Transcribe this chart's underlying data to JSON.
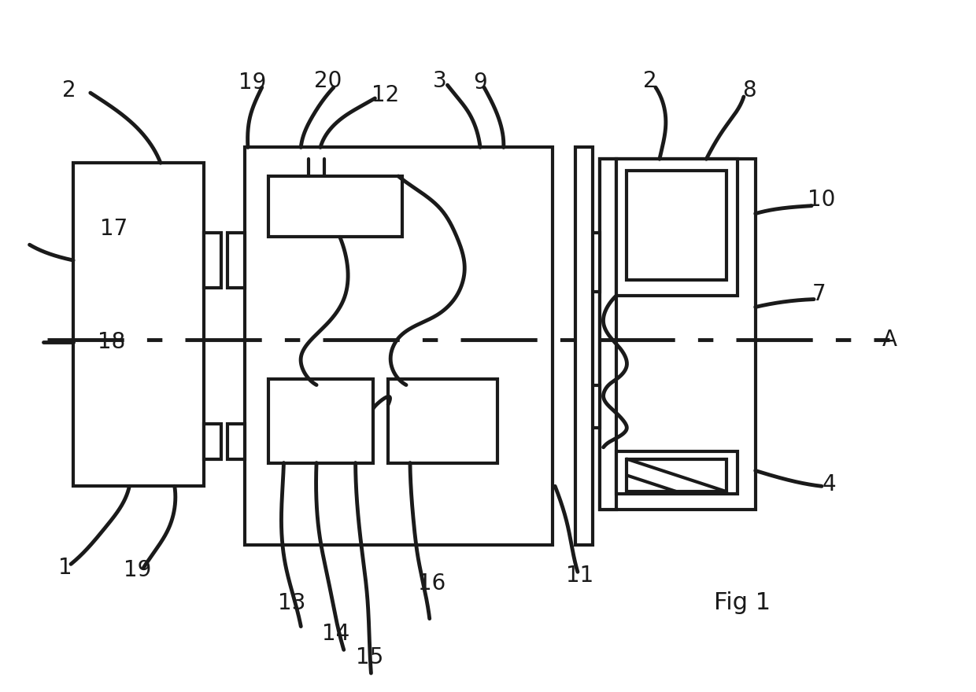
{
  "bg_color": "#ffffff",
  "line_color": "#1a1a1a",
  "lw": 3.0,
  "lw_thin": 2.5
}
